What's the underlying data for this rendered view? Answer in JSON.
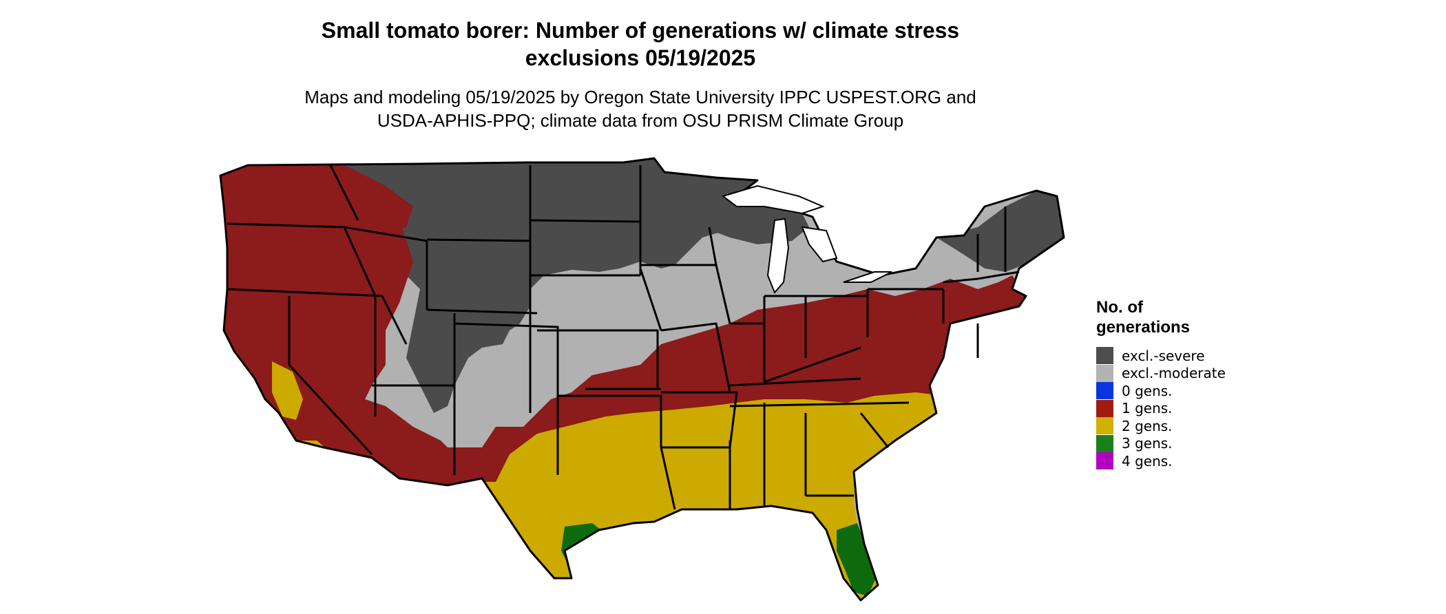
{
  "title": {
    "line1": "Small tomato borer: Number of generations w/ climate stress",
    "line2": "exclusions 05/19/2025"
  },
  "subtitle": {
    "line1": "Maps and modeling 05/19/2025 by Oregon State University IPPC USPEST.ORG and",
    "line2": "USDA-APHIS-PPQ; climate data from OSU PRISM Climate Group"
  },
  "legend": {
    "title_line1": "No. of",
    "title_line2": "generations",
    "items": [
      {
        "label": "excl.-severe",
        "color": "#4d4d4d"
      },
      {
        "label": "excl.-moderate",
        "color": "#b3b3b3"
      },
      {
        "label": "0 gens.",
        "color": "#0a34e0"
      },
      {
        "label": "1 gens.",
        "color": "#a01c10"
      },
      {
        "label": "2 gens.",
        "color": "#d1b100"
      },
      {
        "label": "3 gens.",
        "color": "#1b7f1b"
      },
      {
        "label": "4 gens.",
        "color": "#b000c0"
      }
    ]
  },
  "map_colors": {
    "severe": "#4b4b4b",
    "moderate": "#b1b1b1",
    "one_gen": "#8c1b1b",
    "two_gen": "#ccaa00",
    "three_gen": "#0d6b0d",
    "four_gen": "#b000c0",
    "border": "#000000"
  }
}
